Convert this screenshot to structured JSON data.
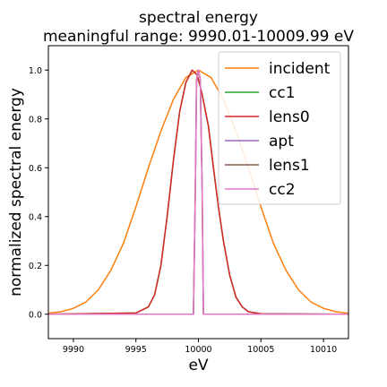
{
  "chart_data": {
    "type": "line",
    "title": "spectral energy",
    "subtitle": "meaningful range: 9990.01-10009.99 eV",
    "xlabel": "eV",
    "ylabel": "normalized spectral energy",
    "xlim": [
      9988,
      10012
    ],
    "ylim": [
      -0.1,
      1.1
    ],
    "xticks": [
      9990,
      9995,
      10000,
      10005,
      10010
    ],
    "yticks": [
      0.0,
      0.2,
      0.4,
      0.6,
      0.8,
      1.0
    ],
    "xtick_labels": [
      "9990",
      "9995",
      "10000",
      "10005",
      "10010"
    ],
    "ytick_labels": [
      "0.0",
      "0.2",
      "0.4",
      "0.6",
      "0.8",
      "1.0"
    ],
    "grid": false,
    "legend_position": "top-right",
    "series": [
      {
        "name": "incident",
        "color": "#ff7f0e",
        "x": [
          9988,
          9989,
          9990,
          9991,
          9992,
          9993,
          9994,
          9995,
          9996,
          9997,
          9998,
          9999,
          10000,
          10001,
          10002,
          10003,
          10004,
          10005,
          10006,
          10007,
          10008,
          10009,
          10010,
          10011,
          10012
        ],
        "y": [
          0.004,
          0.01,
          0.024,
          0.05,
          0.1,
          0.18,
          0.29,
          0.44,
          0.6,
          0.75,
          0.88,
          0.97,
          1.0,
          0.97,
          0.88,
          0.75,
          0.6,
          0.44,
          0.29,
          0.18,
          0.1,
          0.05,
          0.024,
          0.01,
          0.004
        ]
      },
      {
        "name": "cc1",
        "color": "#2ca02c",
        "x": [
          9988,
          9995,
          9996,
          9996.5,
          9997,
          9997.5,
          9998,
          9998.5,
          9999,
          9999.5,
          9999.9,
          10000.3,
          10000.8,
          10001.2,
          10001.6,
          10002,
          10002.5,
          10003,
          10003.5,
          10004,
          10005,
          10012
        ],
        "y": [
          0.0,
          0.005,
          0.03,
          0.08,
          0.2,
          0.4,
          0.63,
          0.83,
          0.95,
          1.0,
          0.98,
          0.9,
          0.77,
          0.6,
          0.44,
          0.3,
          0.16,
          0.07,
          0.03,
          0.01,
          0.002,
          0.0
        ]
      },
      {
        "name": "lens0",
        "color": "#d62728",
        "x": [
          9988,
          9995,
          9996,
          9996.5,
          9997,
          9997.5,
          9998,
          9998.5,
          9999,
          9999.5,
          9999.9,
          10000.3,
          10000.8,
          10001.2,
          10001.6,
          10002,
          10002.5,
          10003,
          10003.5,
          10004,
          10005,
          10012
        ],
        "y": [
          0.0,
          0.005,
          0.03,
          0.08,
          0.2,
          0.4,
          0.63,
          0.83,
          0.95,
          1.0,
          0.98,
          0.9,
          0.77,
          0.6,
          0.44,
          0.3,
          0.16,
          0.07,
          0.03,
          0.01,
          0.002,
          0.0
        ]
      },
      {
        "name": "apt",
        "color": "#9467bd",
        "x": [
          9988,
          9999.6,
          9999.75,
          9999.85,
          10000,
          10000.15,
          10000.3,
          10000.4,
          10012
        ],
        "y": [
          0.0,
          0.0,
          0.5,
          0.96,
          1.0,
          0.96,
          0.5,
          0.0,
          0.0
        ]
      },
      {
        "name": "lens1",
        "color": "#8c564b",
        "x": [
          9988,
          9999.6,
          9999.75,
          9999.85,
          10000,
          10000.15,
          10000.3,
          10000.4,
          10012
        ],
        "y": [
          0.0,
          0.0,
          0.5,
          0.96,
          1.0,
          0.96,
          0.5,
          0.0,
          0.0
        ]
      },
      {
        "name": "cc2",
        "color": "#e377c2",
        "x": [
          9988,
          9999.6,
          9999.75,
          9999.85,
          10000,
          10000.15,
          10000.3,
          10000.4,
          10012
        ],
        "y": [
          0.0,
          0.0,
          0.5,
          0.96,
          1.0,
          0.96,
          0.5,
          0.0,
          0.0
        ]
      }
    ]
  }
}
